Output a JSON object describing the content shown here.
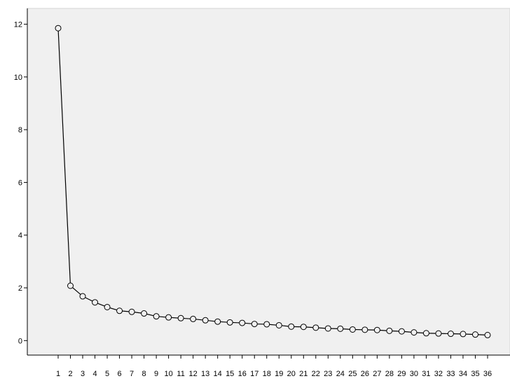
{
  "chart_data": {
    "type": "line",
    "x": [
      1,
      2,
      3,
      4,
      5,
      6,
      7,
      8,
      9,
      10,
      11,
      12,
      13,
      14,
      15,
      16,
      17,
      18,
      19,
      20,
      21,
      22,
      23,
      24,
      25,
      26,
      27,
      28,
      29,
      30,
      31,
      32,
      33,
      34,
      35,
      36
    ],
    "series": [
      {
        "values": [
          11.85,
          2.08,
          1.68,
          1.45,
          1.27,
          1.13,
          1.09,
          1.03,
          0.92,
          0.88,
          0.85,
          0.82,
          0.77,
          0.72,
          0.69,
          0.67,
          0.63,
          0.62,
          0.58,
          0.53,
          0.52,
          0.49,
          0.46,
          0.45,
          0.42,
          0.41,
          0.4,
          0.37,
          0.35,
          0.31,
          0.28,
          0.27,
          0.26,
          0.25,
          0.23,
          0.21
        ]
      }
    ],
    "title": "",
    "xlabel": "",
    "ylabel": "",
    "ylim": [
      -0.55,
      12.6
    ],
    "yticks": [
      0,
      2,
      4,
      6,
      8,
      10,
      12
    ],
    "grid": false,
    "legend": "none",
    "colors": {
      "plot_background": "#f0f0f0",
      "line": "#000000",
      "marker_stroke": "#000000",
      "marker_fill": "#f0f0f0",
      "axis": "#000000"
    }
  }
}
